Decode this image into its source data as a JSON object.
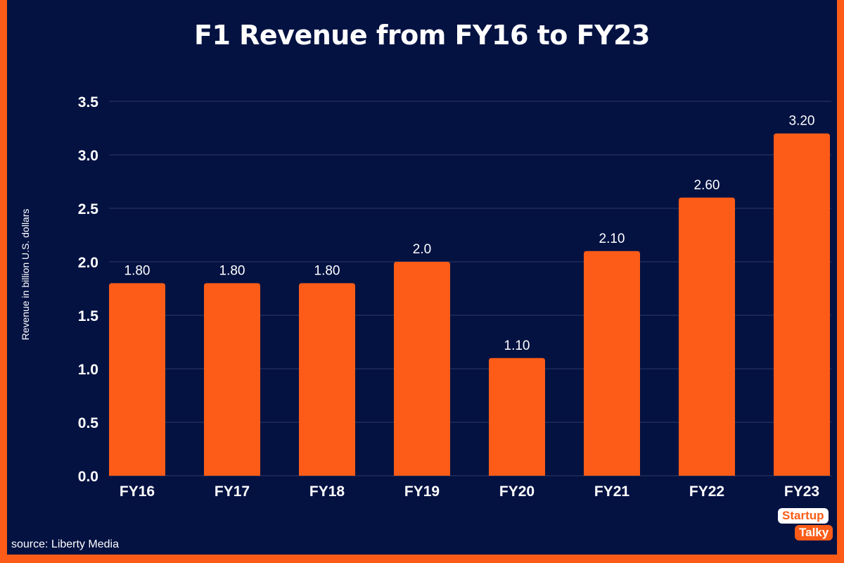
{
  "title": "F1 Revenue from FY16 to FY23",
  "source": "source: Liberty Media",
  "logo": {
    "line1": "Startup",
    "line2": "Talky"
  },
  "colors": {
    "background": "#041242",
    "bar": "#fc5c17",
    "border": "#fc5c17",
    "grid": "#2e3a66"
  },
  "chart_data": {
    "type": "bar",
    "title": "F1 Revenue from FY16 to FY23",
    "xlabel": "",
    "ylabel": "Revenue in billion U.S. dollars",
    "categories": [
      "FY16",
      "FY17",
      "FY18",
      "FY19",
      "FY20",
      "FY21",
      "FY22",
      "FY23"
    ],
    "values": [
      1.8,
      1.8,
      1.8,
      2.0,
      1.1,
      2.1,
      2.6,
      3.2
    ],
    "data_labels": [
      "1.80",
      "1.80",
      "1.80",
      "2.0",
      "1.10",
      "2.10",
      "2.60",
      "3.20"
    ],
    "ylim": [
      0,
      3.5
    ],
    "yticks": [
      "0.0",
      "0.5",
      "1.0",
      "1.5",
      "2.0",
      "2.5",
      "3.0",
      "3.5"
    ],
    "grid": true,
    "legend": "none"
  }
}
